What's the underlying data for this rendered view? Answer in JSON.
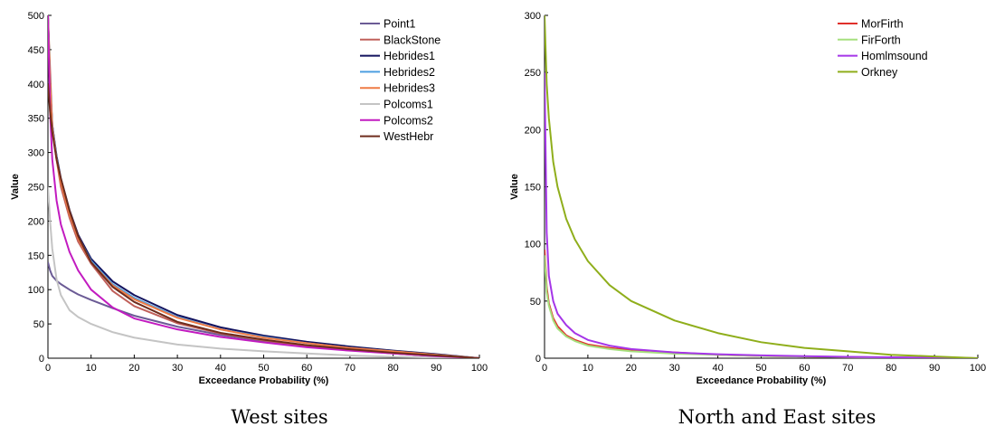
{
  "chart_data": [
    {
      "type": "line",
      "caption": "West sites",
      "xlabel": "Exceedance Probability (%)",
      "ylabel": "Value",
      "xlim": [
        0,
        100
      ],
      "ylim": [
        0,
        500
      ],
      "xticks": [
        0,
        10,
        20,
        30,
        40,
        50,
        60,
        70,
        80,
        90,
        100
      ],
      "yticks": [
        0,
        50,
        100,
        150,
        200,
        250,
        300,
        350,
        400,
        450,
        500
      ],
      "grid": false,
      "legend_position": "top-right",
      "series": [
        {
          "name": "Point1",
          "color": "#6b5b95",
          "x": [
            0,
            0.5,
            1,
            2,
            3,
            5,
            7,
            10,
            15,
            20,
            30,
            40,
            50,
            60,
            70,
            80,
            90,
            100
          ],
          "y": [
            140,
            128,
            120,
            113,
            108,
            100,
            93,
            85,
            73,
            62,
            46,
            34,
            25,
            18,
            12,
            7,
            3,
            0
          ]
        },
        {
          "name": "BlackStone",
          "color": "#c0605a",
          "x": [
            0,
            0.5,
            1,
            2,
            3,
            5,
            7,
            10,
            15,
            20,
            30,
            40,
            50,
            60,
            70,
            80,
            90,
            100
          ],
          "y": [
            500,
            420,
            340,
            290,
            250,
            205,
            170,
            138,
            98,
            76,
            51,
            36,
            26,
            18,
            12,
            7,
            3,
            0
          ]
        },
        {
          "name": "Hebrides1",
          "color": "#12125e",
          "x": [
            0,
            0.5,
            1,
            2,
            3,
            5,
            7,
            10,
            15,
            20,
            30,
            40,
            50,
            60,
            70,
            80,
            90,
            100
          ],
          "y": [
            500,
            400,
            340,
            295,
            262,
            216,
            180,
            145,
            112,
            92,
            63,
            45,
            33,
            24,
            17,
            11,
            6,
            0
          ]
        },
        {
          "name": "Hebrides2",
          "color": "#4c9fe0",
          "x": [
            0,
            0.5,
            1,
            2,
            3,
            5,
            7,
            10,
            15,
            20,
            30,
            40,
            50,
            60,
            70,
            80,
            90,
            100
          ],
          "y": [
            500,
            400,
            338,
            292,
            258,
            212,
            177,
            142,
            108,
            88,
            60,
            42,
            31,
            22,
            15,
            10,
            5,
            0
          ]
        },
        {
          "name": "Hebrides3",
          "color": "#ef7b45",
          "x": [
            0,
            0.5,
            1,
            2,
            3,
            5,
            7,
            10,
            15,
            20,
            30,
            40,
            50,
            60,
            70,
            80,
            90,
            100
          ],
          "y": [
            500,
            400,
            336,
            290,
            256,
            210,
            175,
            140,
            106,
            86,
            59,
            42,
            30,
            22,
            15,
            10,
            5,
            0
          ]
        },
        {
          "name": "Polcoms1",
          "color": "#c4c4c4",
          "x": [
            0,
            0.5,
            1,
            2,
            3,
            5,
            7,
            10,
            15,
            20,
            30,
            40,
            50,
            60,
            70,
            80,
            90,
            100
          ],
          "y": [
            250,
            200,
            160,
            115,
            92,
            70,
            60,
            50,
            38,
            30,
            20,
            14,
            10,
            7,
            4,
            2,
            1,
            0
          ]
        },
        {
          "name": "Polcoms2",
          "color": "#c21bc0",
          "x": [
            0,
            0.5,
            1,
            2,
            3,
            5,
            7,
            10,
            15,
            20,
            30,
            40,
            50,
            60,
            70,
            80,
            90,
            100
          ],
          "y": [
            500,
            360,
            290,
            230,
            195,
            155,
            128,
            100,
            74,
            58,
            42,
            31,
            23,
            16,
            11,
            7,
            3,
            0
          ]
        },
        {
          "name": "WestHebr",
          "color": "#6e2c1c",
          "x": [
            0,
            0.5,
            1,
            2,
            3,
            5,
            7,
            10,
            15,
            20,
            30,
            40,
            50,
            60,
            70,
            80,
            90,
            100
          ],
          "y": [
            400,
            360,
            330,
            290,
            262,
            215,
            178,
            140,
            104,
            82,
            53,
            37,
            27,
            19,
            13,
            8,
            4,
            0
          ]
        }
      ]
    },
    {
      "type": "line",
      "caption": "North and East sites",
      "xlabel": "Exceedance Probability (%)",
      "ylabel": "Value",
      "xlim": [
        0,
        100
      ],
      "ylim": [
        0,
        300
      ],
      "xticks": [
        0,
        10,
        20,
        30,
        40,
        50,
        60,
        70,
        80,
        90,
        100
      ],
      "yticks": [
        0,
        50,
        100,
        150,
        200,
        250,
        300
      ],
      "grid": false,
      "legend_position": "top-right",
      "series": [
        {
          "name": "MorFirth",
          "color": "#e0302a",
          "x": [
            0,
            0.5,
            1,
            2,
            3,
            5,
            7,
            10,
            15,
            20,
            30,
            40,
            50,
            60,
            70,
            80,
            90,
            100
          ],
          "y": [
            95,
            62,
            48,
            35,
            28,
            20,
            16,
            12,
            9,
            7,
            5,
            3,
            2,
            1.5,
            1,
            0.6,
            0.3,
            0
          ]
        },
        {
          "name": "FirForth",
          "color": "#a6e07e",
          "x": [
            0,
            0.5,
            1,
            2,
            3,
            5,
            7,
            10,
            15,
            20,
            30,
            40,
            50,
            60,
            70,
            80,
            90,
            100
          ],
          "y": [
            90,
            58,
            46,
            33,
            26,
            19,
            15,
            11,
            8,
            6,
            4,
            3,
            2,
            1.5,
            1,
            0.6,
            0.3,
            0
          ]
        },
        {
          "name": "Homlmsound",
          "color": "#a535e8",
          "x": [
            0,
            0.5,
            1,
            2,
            3,
            5,
            7,
            10,
            15,
            20,
            30,
            40,
            50,
            60,
            70,
            80,
            90,
            100
          ],
          "y": [
            250,
            110,
            72,
            50,
            39,
            29,
            22,
            16,
            11,
            8,
            5,
            3.5,
            2.5,
            1.8,
            1.2,
            0.8,
            0.4,
            0
          ]
        },
        {
          "name": "Orkney",
          "color": "#8fae1b",
          "x": [
            0,
            0.5,
            1,
            2,
            3,
            5,
            7,
            10,
            15,
            20,
            30,
            40,
            50,
            60,
            70,
            80,
            90,
            100
          ],
          "y": [
            300,
            240,
            210,
            172,
            150,
            122,
            104,
            85,
            64,
            50,
            33,
            22,
            14,
            9,
            6,
            3,
            1.5,
            0
          ]
        }
      ]
    }
  ]
}
